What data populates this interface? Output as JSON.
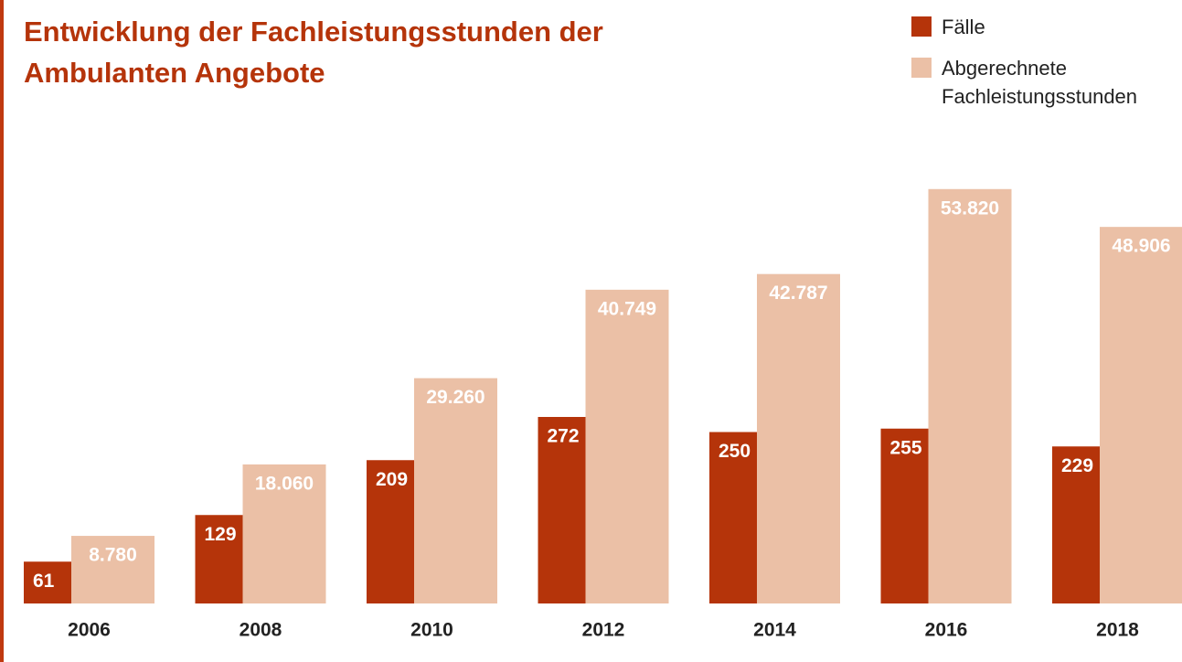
{
  "chart_data": {
    "type": "bar",
    "title": "Entwicklung der Fachleistungsstunden der Ambulanten Angebote",
    "categories": [
      "2006",
      "2008",
      "2010",
      "2012",
      "2014",
      "2016",
      "2018"
    ],
    "ylim": [
      0,
      640
    ],
    "y2lim": [
      0,
      57000
    ],
    "legend": "top-right",
    "series": [
      {
        "name": "Fälle",
        "color": "#b5340a",
        "values": [
          61,
          129,
          209,
          272,
          250,
          255,
          229
        ]
      },
      {
        "name": "Abgerechnete Fachleistungsstunden",
        "color": "#ebc0a6",
        "axis": "y2",
        "values": [
          8780,
          18060,
          29260,
          40749,
          42787,
          53820,
          48906
        ],
        "value_labels": [
          "8.780",
          "18.060",
          "29.260",
          "40.749",
          "42.787",
          "53.820",
          "48.906"
        ]
      }
    ]
  }
}
